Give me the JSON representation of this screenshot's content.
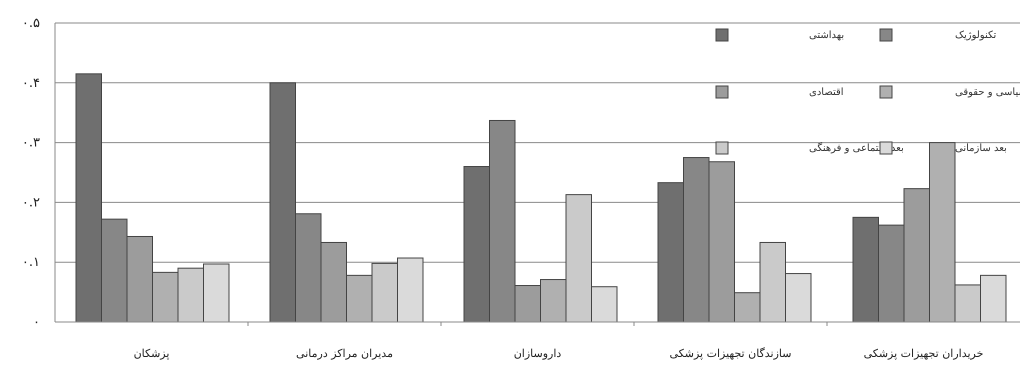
{
  "chart_data": {
    "type": "bar",
    "title": "",
    "xlabel": "",
    "ylabel": "",
    "ylim": [
      0,
      0.5
    ],
    "y_ticks": [
      "۰",
      "۰.۱",
      "۰.۲",
      "۰.۳",
      "۰.۴",
      "۰.۵"
    ],
    "y_tick_values": [
      0,
      0.1,
      0.2,
      0.3,
      0.4,
      0.5
    ],
    "grid": true,
    "legend_position": "top-right",
    "categories": [
      "پزشکان",
      "مدیران مراکز درمانی",
      "داروسازان",
      "سازندگان تجهیزات پزشکی",
      "خریداران تجهیزات پزشکی"
    ],
    "series": [
      {
        "name": "بهداشتی",
        "color": "#6f6f6f",
        "values": [
          0.415,
          0.4,
          0.26,
          0.233,
          0.175
        ]
      },
      {
        "name": "تکنولوژیک",
        "color": "#878787",
        "values": [
          0.172,
          0.181,
          0.337,
          0.275,
          0.162
        ]
      },
      {
        "name": "اقتصادی",
        "color": "#9c9c9c",
        "values": [
          0.143,
          0.133,
          0.061,
          0.268,
          0.223
        ]
      },
      {
        "name": "بعد سیاسی و حقوقی",
        "color": "#b0b0b0",
        "values": [
          0.083,
          0.078,
          0.071,
          0.049,
          0.3
        ]
      },
      {
        "name": "بعد اجتماعی و فرهنگی",
        "color": "#cacaca",
        "values": [
          0.09,
          0.098,
          0.213,
          0.133,
          0.062
        ]
      },
      {
        "name": "بعد سازمانی",
        "color": "#dadada",
        "values": [
          0.097,
          0.107,
          0.059,
          0.081,
          0.078
        ]
      }
    ]
  }
}
